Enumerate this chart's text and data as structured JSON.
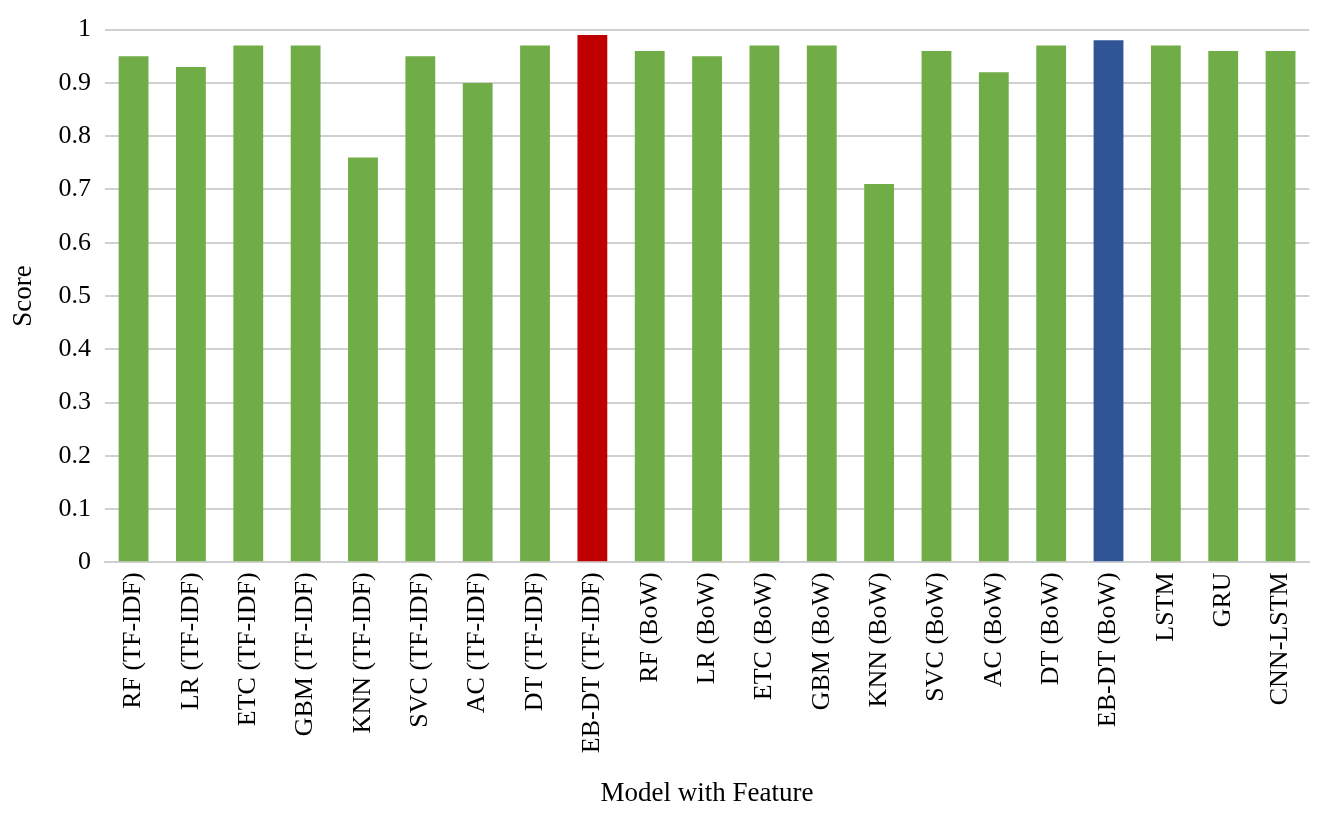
{
  "chart_data": {
    "type": "bar",
    "xlabel": "Model with Feature",
    "ylabel": "Score",
    "categories": [
      "RF (TF-IDF)",
      "LR (TF-IDF)",
      "ETC (TF-IDF)",
      "GBM (TF-IDF)",
      "KNN (TF-IDF)",
      "SVC (TF-IDF)",
      "AC (TF-IDF)",
      "DT (TF-IDF)",
      "EB-DT (TF-IDF)",
      "RF (BoW)",
      "LR (BoW)",
      "ETC (BoW)",
      "GBM (BoW)",
      "KNN (BoW)",
      "SVC (BoW)",
      "AC (BoW)",
      "DT (BoW)",
      "EB-DT (BoW)",
      "LSTM",
      "GRU",
      "CNN-LSTM"
    ],
    "values": [
      0.95,
      0.93,
      0.97,
      0.97,
      0.76,
      0.95,
      0.9,
      0.97,
      0.99,
      0.96,
      0.95,
      0.97,
      0.97,
      0.71,
      0.96,
      0.92,
      0.97,
      0.98,
      0.97,
      0.96,
      0.96
    ],
    "colors": [
      "#70ad47",
      "#70ad47",
      "#70ad47",
      "#70ad47",
      "#70ad47",
      "#70ad47",
      "#70ad47",
      "#70ad47",
      "#c00000",
      "#70ad47",
      "#70ad47",
      "#70ad47",
      "#70ad47",
      "#70ad47",
      "#70ad47",
      "#70ad47",
      "#70ad47",
      "#2f5597",
      "#70ad47",
      "#70ad47",
      "#70ad47"
    ],
    "ylim": [
      0,
      1
    ],
    "yticks": [
      0,
      0.1,
      0.2,
      0.3,
      0.4,
      0.5,
      0.6,
      0.7,
      0.8,
      0.9,
      1
    ],
    "grid": "y",
    "legend": false
  }
}
